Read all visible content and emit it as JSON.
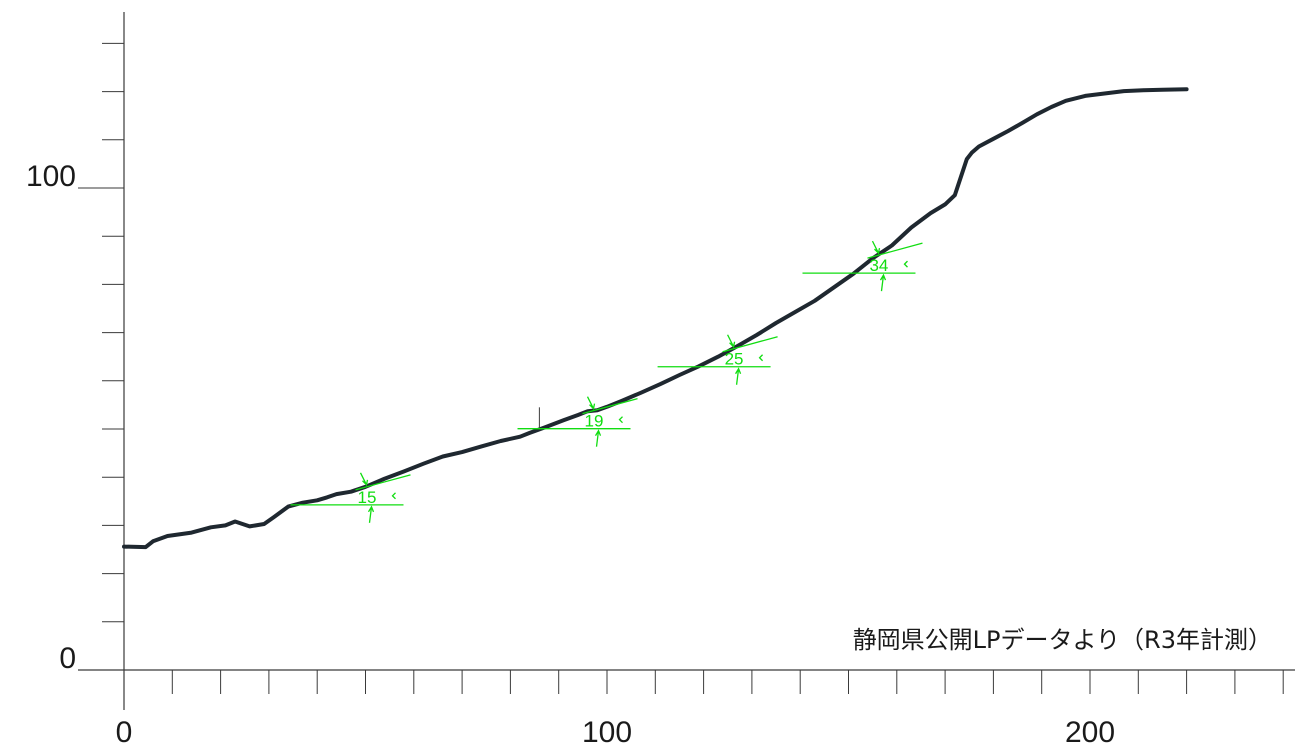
{
  "chart_data": {
    "type": "line",
    "title": "",
    "xlabel": "",
    "ylabel": "",
    "xlim": [
      0,
      240
    ],
    "ylim": [
      0,
      130
    ],
    "x_ticks_labeled": [
      0,
      100,
      200
    ],
    "x_tick_labels": [
      "0",
      "100",
      "200"
    ],
    "y_ticks_labeled": [
      0,
      100
    ],
    "y_tick_labels": [
      "0",
      "100"
    ],
    "x_minor_step": 10,
    "y_minor_step": 10,
    "grid": false,
    "source_note": "静岡県公開LPデータより（R3年計測）",
    "series": [
      {
        "color": "#1f2830",
        "x": [
          0,
          4.5,
          6,
          9,
          14,
          18,
          21,
          23,
          26,
          29,
          31,
          34,
          37,
          40,
          42,
          44,
          47,
          50,
          54,
          58,
          62,
          66,
          70,
          74,
          78,
          82,
          84,
          87,
          91,
          94,
          96,
          98,
          100,
          103,
          107,
          111,
          115,
          119,
          123,
          127,
          131,
          135,
          139,
          143,
          147,
          151,
          155,
          159,
          163,
          167,
          170,
          172,
          174.5,
          175.5,
          177,
          180,
          183,
          186,
          189,
          192,
          195,
          199,
          203,
          207,
          211,
          215,
          220
        ],
        "y": [
          25.6,
          25.5,
          26.7,
          27.8,
          28.5,
          29.6,
          30,
          30.8,
          29.8,
          30.3,
          31.7,
          33.9,
          34.7,
          35.2,
          35.8,
          36.5,
          37,
          38,
          39.7,
          41.2,
          42.8,
          44.3,
          45.2,
          46.4,
          47.5,
          48.4,
          49.2,
          50.3,
          51.8,
          52.9,
          53.7,
          53.9,
          54.6,
          55.8,
          57.5,
          59.3,
          61.2,
          63,
          65,
          67.2,
          69.5,
          72,
          74.3,
          76.6,
          79.4,
          82.2,
          85.4,
          88.1,
          91.8,
          94.8,
          96.6,
          98.5,
          106,
          107.3,
          108.6,
          110.2,
          111.8,
          113.5,
          115.3,
          116.8,
          118.1,
          119.1,
          119.6,
          120.1,
          120.3,
          120.4,
          120.5
        ]
      }
    ],
    "slope_annotations": [
      {
        "label": "15",
        "x": 50
      },
      {
        "label": "19",
        "x": 97
      },
      {
        "label": "25",
        "x": 126
      },
      {
        "label": "34",
        "x": 156
      }
    ],
    "vertical_marker_x": 86
  }
}
